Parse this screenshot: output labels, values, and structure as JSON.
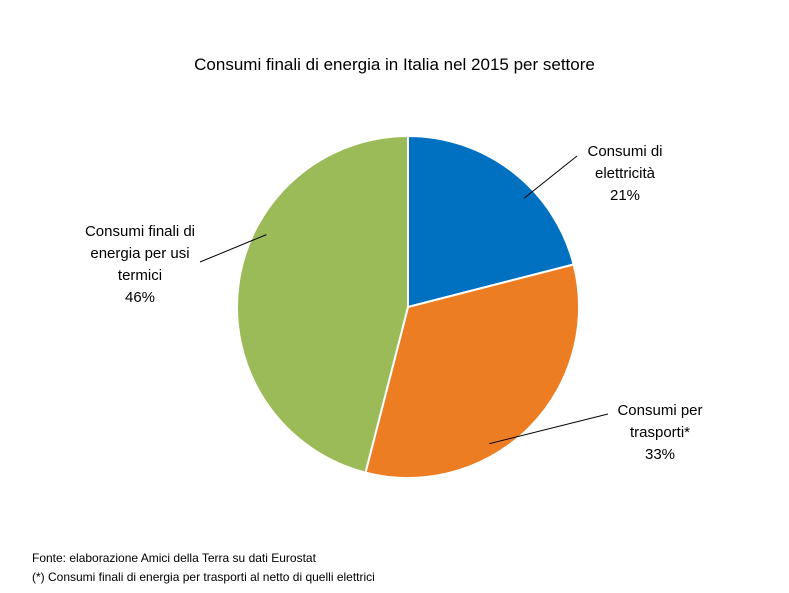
{
  "chart_data": {
    "type": "pie",
    "title": "Consumi finali di energia in Italia nel 2015 per settore",
    "start_angle_deg": 0,
    "direction": "clockwise",
    "slices": [
      {
        "label_lines": [
          "Consumi di",
          "elettricità"
        ],
        "value": 21,
        "value_label": "21%",
        "color": "#0070C0"
      },
      {
        "label_lines": [
          "Consumi per",
          "trasporti*"
        ],
        "value": 33,
        "value_label": "33%",
        "color": "#ED7D22"
      },
      {
        "label_lines": [
          "Consumi finali di",
          "energia per usi",
          "termici"
        ],
        "value": 46,
        "value_label": "46%",
        "color": "#9BBB59"
      }
    ]
  },
  "footer": {
    "source": "Fonte: elaborazione Amici della Terra su dati Eurostat",
    "note": "(*) Consumi finali di energia per trasporti al netto di quelli elettrici"
  }
}
